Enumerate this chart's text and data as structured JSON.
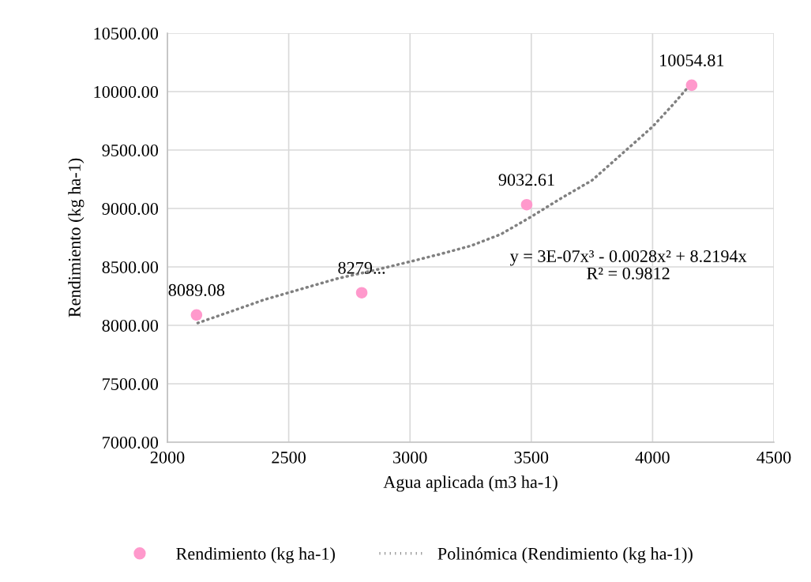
{
  "chart_data": {
    "type": "scatter",
    "xlabel": "Agua aplicada (m3 ha-1)",
    "ylabel": "Rendimiento (kg ha-1)",
    "xlim": [
      2000,
      4500
    ],
    "xticks": [
      2000,
      2500,
      3000,
      3500,
      4000,
      4500
    ],
    "ylim": [
      7000,
      10500
    ],
    "yticks": [
      {
        "value": 7000,
        "label": "7000.00"
      },
      {
        "value": 7500,
        "label": "7500.00"
      },
      {
        "value": 8000,
        "label": "8000.00"
      },
      {
        "value": 8500,
        "label": "8500.00"
      },
      {
        "value": 9000,
        "label": "9000.00"
      },
      {
        "value": 9500,
        "label": "9500.00"
      },
      {
        "value": 10000,
        "label": "10000.00"
      },
      {
        "value": 10500,
        "label": "10500.00"
      }
    ],
    "grid": true,
    "legend": "bottom",
    "series": [
      {
        "name": "Rendimiento (kg ha-1)",
        "color": "#ff99cc",
        "marker": "circle",
        "x": [
          2120,
          2801,
          3481,
          4161
        ],
        "values": [
          8089.08,
          8279,
          9032.61,
          10054.81
        ],
        "value_labels": [
          "8089.08",
          "8279...",
          "9032.61",
          "10054.81"
        ]
      },
      {
        "name": "Polinómica (Rendimiento (kg ha-1))",
        "type": "line",
        "color": "#808080",
        "line_style": "dotted",
        "x": [
          2125,
          2250,
          2400,
          2550,
          2700,
          2850,
          3000,
          3125,
          3250,
          3375,
          3500,
          3625,
          3750,
          3875,
          4000,
          4080,
          4160
        ],
        "values": [
          8020,
          8110,
          8220,
          8310,
          8400,
          8470,
          8545,
          8610,
          8680,
          8780,
          8930,
          9090,
          9240,
          9470,
          9700,
          9880,
          10070
        ]
      }
    ],
    "annotations": [
      "y = 3E-07x³ - 0.0028x² + 8.2194x",
      "R² = 0.9812"
    ]
  }
}
